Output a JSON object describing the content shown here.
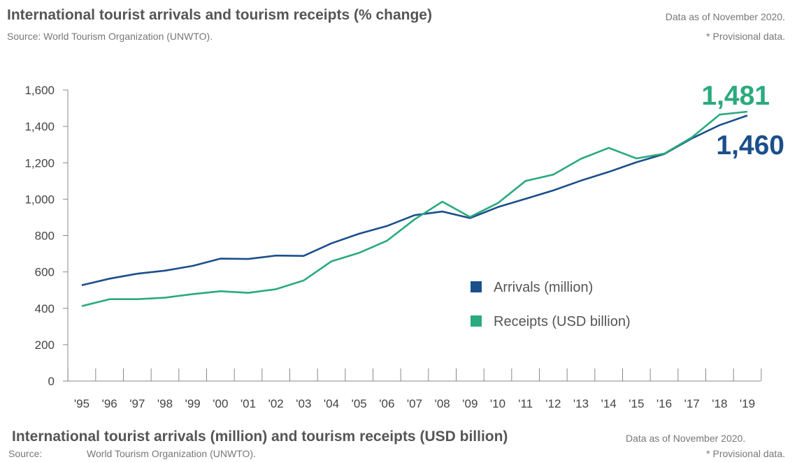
{
  "header": {
    "title": "International tourist arrivals and tourism receipts (% change)",
    "source": "Source: World Tourism Organization (UNWTO).",
    "note_date": "Data as of November 2020.",
    "note_provisional": "* Provisional data."
  },
  "footer": {
    "title": "International tourist arrivals (million) and tourism receipts (USD billion)",
    "note_date": "Data as of November 2020.",
    "source_label": "Source:",
    "source": "World Tourism Organization (UNWTO).",
    "note_provisional": "* Provisional data."
  },
  "colors": {
    "arrivals": "#1b4f8c",
    "receipts": "#2aaa7d",
    "axis": "#888888"
  },
  "chart_data": {
    "type": "line",
    "categories": [
      "'95",
      "'96",
      "'97",
      "'98",
      "'99",
      "'00",
      "'01",
      "'02",
      "'03",
      "'04",
      "'05",
      "'06",
      "'07",
      "'08",
      "'09",
      "'10",
      "'11",
      "'12",
      "'13",
      "'14",
      "'15",
      "'16",
      "'17",
      "'18",
      "'19"
    ],
    "ylim": [
      0,
      1600
    ],
    "yticks": [
      0,
      200,
      400,
      600,
      800,
      1000,
      1200,
      1400,
      1600
    ],
    "ytick_labels": [
      "0",
      "200",
      "400",
      "600",
      "800",
      "1,000",
      "1,200",
      "1,400",
      "1,600"
    ],
    "grid": false,
    "legend_position": "center-right",
    "series": [
      {
        "name": "Arrivals (million)",
        "color": "#1b4f8c",
        "values": [
          527,
          563,
          590,
          607,
          633,
          673,
          671,
          690,
          688,
          757,
          810,
          852,
          912,
          932,
          896,
          956,
          1002,
          1048,
          1102,
          1150,
          1203,
          1248,
          1334,
          1407,
          1460
        ]
      },
      {
        "name": "Receipts (USD billion)",
        "color": "#2aaa7d",
        "values": [
          412,
          450,
          450,
          458,
          478,
          494,
          485,
          505,
          553,
          658,
          705,
          771,
          889,
          986,
          902,
          978,
          1100,
          1135,
          1222,
          1282,
          1224,
          1250,
          1340,
          1465,
          1481
        ]
      }
    ],
    "annotations": [
      {
        "text": "1,481",
        "series": "Receipts (USD billion)"
      },
      {
        "text": "1,460",
        "series": "Arrivals (million)"
      }
    ]
  }
}
